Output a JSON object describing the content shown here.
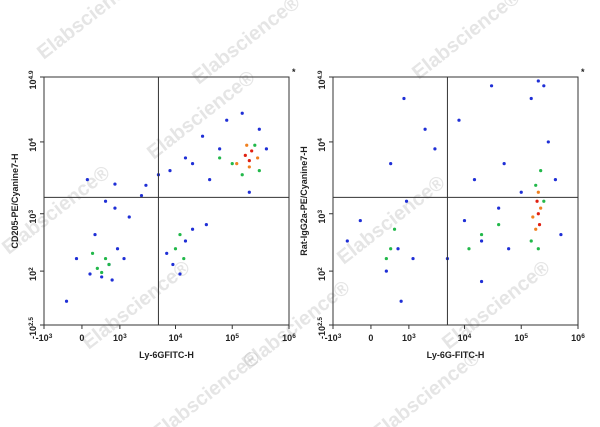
{
  "watermark": "Elabscience®",
  "chart_data": [
    {
      "type": "scatter",
      "xlabel": "Ly-6GFITC-H",
      "ylabel": "CD205-PE/Cyanine7-H",
      "corner_mark": "*",
      "xlim": [
        -1000,
        1000000
      ],
      "ylim": [
        -316.2,
        79432.8
      ],
      "xticks": [
        {
          "value": -1000,
          "label": "-10",
          "exponent": "3"
        },
        0,
        {
          "value": 1000,
          "label": "10",
          "exponent": "3"
        },
        {
          "value": 10000,
          "label": "10",
          "exponent": "4"
        },
        {
          "value": 100000,
          "label": "10",
          "exponent": "5"
        },
        {
          "value": 1000000,
          "label": "10",
          "exponent": "6"
        }
      ],
      "yticks": [
        {
          "value": -316.2,
          "label": "-10",
          "exponent": "2.5"
        },
        {
          "value": 100,
          "label": "10",
          "exponent": "2"
        },
        {
          "value": 1000,
          "label": "10",
          "exponent": "3"
        },
        {
          "value": 10000,
          "label": "10",
          "exponent": "4"
        },
        {
          "value": 79432.8,
          "label": "10",
          "exponent": "4.9"
        }
      ],
      "gate": {
        "x": 5000,
        "y": 1700
      },
      "points": [
        {
          "color": "#1f2fd6",
          "x": [
            150,
            600,
            900,
            -300,
            250,
            800,
            1200,
            400,
            -100,
            700,
            9000,
            15000,
            20000,
            7000,
            12000,
            3000,
            5000,
            8000,
            20000,
            40000,
            60000,
            15000,
            30000,
            2500,
            800,
            500,
            100,
            1500,
            35000,
            200000,
            400000,
            300000,
            80000,
            150000
          ],
          "y": [
            80,
            150,
            300,
            -100,
            500,
            1200,
            200,
            60,
            200,
            40,
            150,
            400,
            600,
            250,
            80,
            2500,
            3500,
            4000,
            5000,
            3000,
            8000,
            6000,
            12000,
            1800,
            2600,
            1500,
            3000,
            900,
            700,
            2000,
            8000,
            15000,
            20000,
            25000
          ]
        },
        {
          "color": "#22b84a",
          "x": [
            300,
            500,
            400,
            200,
            600,
            10000,
            14000,
            12000,
            100000,
            150000,
            250000,
            300000,
            60000
          ],
          "y": [
            120,
            200,
            90,
            250,
            150,
            300,
            200,
            500,
            5000,
            3500,
            9000,
            4000,
            6000
          ]
        },
        {
          "color": "#f08020",
          "x": [
            120000,
            180000,
            280000,
            200000
          ],
          "y": [
            5000,
            9000,
            6000,
            4500
          ]
        },
        {
          "color": "#e02010",
          "x": [
            170000,
            220000,
            200000
          ],
          "y": [
            6500,
            7500,
            5500
          ]
        }
      ]
    },
    {
      "type": "scatter",
      "xlabel": "Ly-6G-FITC-H",
      "ylabel": "Rat-IgG2a-PE/Cyanine7-H",
      "corner_mark": "*",
      "xlim": [
        -1000,
        1000000
      ],
      "ylim": [
        -316.2,
        79432.8
      ],
      "xticks": [
        {
          "value": -1000,
          "label": "-10",
          "exponent": "3"
        },
        0,
        {
          "value": 1000,
          "label": "10",
          "exponent": "3"
        },
        {
          "value": 10000,
          "label": "10",
          "exponent": "4"
        },
        {
          "value": 100000,
          "label": "10",
          "exponent": "5"
        },
        {
          "value": 1000000,
          "label": "10",
          "exponent": "6"
        }
      ],
      "yticks": [
        {
          "value": -316.2,
          "label": "-10",
          "exponent": "2.5"
        },
        {
          "value": 100,
          "label": "10",
          "exponent": "2"
        },
        {
          "value": 1000,
          "label": "10",
          "exponent": "3"
        },
        {
          "value": 10000,
          "label": "10",
          "exponent": "4"
        },
        {
          "value": 79432.8,
          "label": "10",
          "exponent": "4.9"
        }
      ],
      "gate": {
        "x": 5000,
        "y": 1700
      },
      "points": [
        {
          "color": "#1f2fd6",
          "x": [
            300,
            600,
            -200,
            900,
            1200,
            400,
            5000,
            10000,
            20000,
            40000,
            60000,
            8000,
            15000,
            30000,
            3000,
            800,
            2000,
            50000,
            100000,
            500000,
            400000,
            150000,
            250000,
            700,
            20000,
            200000,
            -500,
            300000
          ],
          "y": [
            100,
            300,
            800,
            1500,
            200,
            5000,
            200,
            800,
            400,
            1200,
            300,
            20000,
            3000,
            60000,
            8000,
            40000,
            15000,
            5000,
            2000,
            500,
            3000,
            40000,
            60000,
            -100,
            30,
            70000,
            400,
            10000
          ]
        },
        {
          "color": "#22b84a",
          "x": [
            400,
            500,
            300,
            20000,
            40000,
            12000,
            150000,
            180000,
            250000,
            220000,
            200000
          ],
          "y": [
            300,
            600,
            200,
            500,
            700,
            300,
            400,
            2500,
            1500,
            4000,
            300
          ]
        },
        {
          "color": "#f08020",
          "x": [
            180000,
            220000,
            200000,
            160000
          ],
          "y": [
            600,
            1200,
            2000,
            900
          ]
        },
        {
          "color": "#e02010",
          "x": [
            200000,
            190000,
            210000
          ],
          "y": [
            1000,
            1500,
            700
          ]
        }
      ]
    }
  ]
}
